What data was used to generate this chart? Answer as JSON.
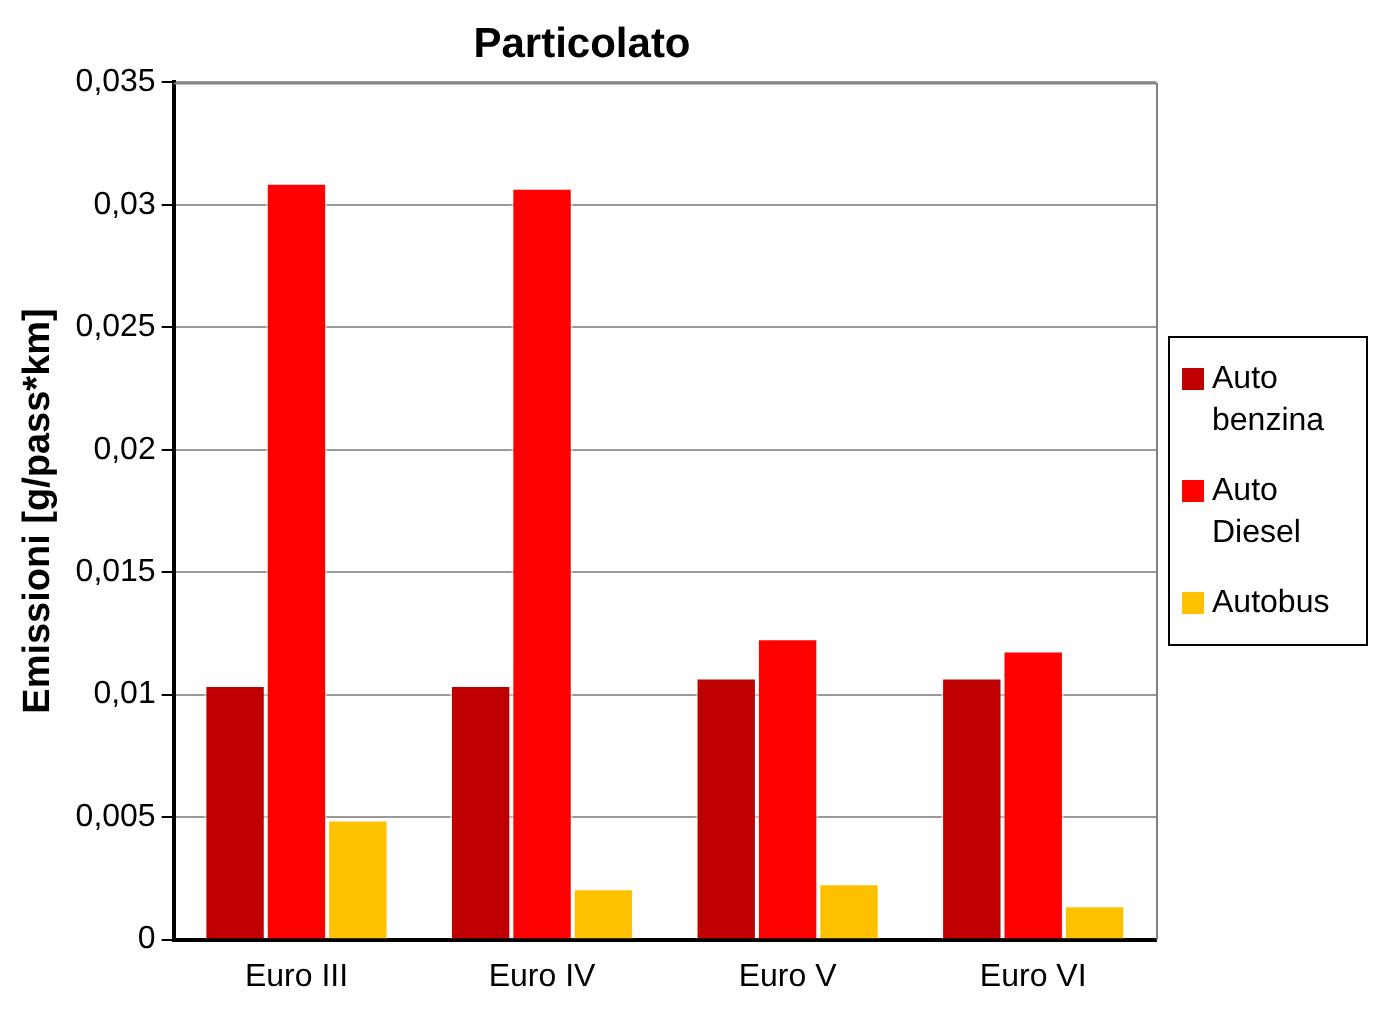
{
  "chart_data": {
    "type": "bar",
    "title": "Particolato",
    "ylabel": "Emissioni [g/pass*km]",
    "categories": [
      "Euro III",
      "Euro IV",
      "Euro V",
      "Euro VI"
    ],
    "series": [
      {
        "name": "Auto benzina",
        "color": "#c00000",
        "values": [
          0.0104,
          0.0104,
          0.0107,
          0.0107
        ]
      },
      {
        "name": "Auto Diesel",
        "color": "#ff0000",
        "values": [
          0.0309,
          0.0307,
          0.0123,
          0.0118
        ]
      },
      {
        "name": "Autobus",
        "color": "#ffc000",
        "values": [
          0.0049,
          0.0021,
          0.0023,
          0.0014
        ]
      }
    ],
    "ylim": [
      0,
      0.035
    ],
    "yticks": [
      {
        "value": 0,
        "label": "0"
      },
      {
        "value": 0.005,
        "label": "0,005"
      },
      {
        "value": 0.01,
        "label": "0,01"
      },
      {
        "value": 0.015,
        "label": "0,015"
      },
      {
        "value": 0.02,
        "label": "0,02"
      },
      {
        "value": 0.025,
        "label": "0,025"
      },
      {
        "value": 0.03,
        "label": "0,03"
      },
      {
        "value": 0.035,
        "label": "0,035"
      }
    ],
    "grid": "y",
    "legend": "right"
  }
}
